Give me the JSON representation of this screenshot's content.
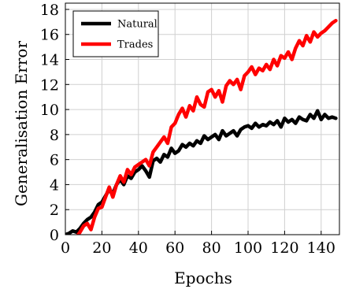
{
  "chart_data": {
    "type": "line",
    "title": "",
    "xlabel": "Epochs",
    "ylabel": "Generalisation Error",
    "xlim": [
      0,
      150
    ],
    "ylim": [
      0,
      18.5
    ],
    "xticks": [
      0,
      20,
      40,
      60,
      80,
      100,
      120,
      140
    ],
    "yticks": [
      0,
      2,
      4,
      6,
      8,
      10,
      12,
      14,
      16,
      18
    ],
    "grid": true,
    "legend": "top-left",
    "series": [
      {
        "name": "Natural",
        "color": "#000000",
        "x": [
          0,
          2,
          4,
          6,
          8,
          10,
          12,
          14,
          16,
          18,
          20,
          22,
          24,
          26,
          28,
          30,
          32,
          34,
          36,
          38,
          40,
          42,
          44,
          46,
          48,
          50,
          52,
          54,
          56,
          58,
          60,
          62,
          64,
          66,
          68,
          70,
          72,
          74,
          76,
          78,
          80,
          82,
          84,
          86,
          88,
          90,
          92,
          94,
          96,
          98,
          100,
          102,
          104,
          106,
          108,
          110,
          112,
          114,
          116,
          118,
          120,
          122,
          124,
          126,
          128,
          130,
          132,
          134,
          136,
          138,
          140,
          142,
          144,
          146,
          148
        ],
        "values": [
          0,
          0.1,
          0.3,
          0.2,
          0.5,
          0.9,
          1.2,
          1.4,
          1.8,
          2.4,
          2.6,
          3.1,
          3.6,
          3.3,
          4.0,
          4.4,
          4.0,
          4.7,
          4.5,
          5.0,
          5.2,
          5.5,
          5.1,
          4.6,
          5.9,
          6.1,
          5.8,
          6.4,
          6.2,
          6.9,
          6.5,
          6.7,
          7.2,
          7.0,
          7.3,
          7.1,
          7.5,
          7.3,
          7.9,
          7.6,
          7.8,
          8.0,
          7.6,
          8.3,
          7.9,
          8.1,
          8.3,
          7.9,
          8.4,
          8.6,
          8.7,
          8.5,
          8.9,
          8.6,
          8.8,
          8.7,
          9.0,
          8.8,
          9.1,
          8.6,
          9.3,
          9.0,
          9.2,
          8.9,
          9.4,
          9.2,
          9.1,
          9.6,
          9.3,
          9.9,
          9.2,
          9.6,
          9.3,
          9.4,
          9.3
        ]
      },
      {
        "name": "Trades",
        "color": "#ff0000",
        "x": [
          0,
          2,
          4,
          6,
          8,
          10,
          12,
          14,
          16,
          18,
          20,
          22,
          24,
          26,
          28,
          30,
          32,
          34,
          36,
          38,
          40,
          42,
          44,
          46,
          48,
          50,
          52,
          54,
          56,
          58,
          60,
          62,
          64,
          66,
          68,
          70,
          72,
          74,
          76,
          78,
          80,
          82,
          84,
          86,
          88,
          90,
          92,
          94,
          96,
          98,
          100,
          102,
          104,
          106,
          108,
          110,
          112,
          114,
          116,
          118,
          120,
          122,
          124,
          126,
          128,
          130,
          132,
          134,
          136,
          138,
          140,
          142,
          144,
          146,
          148
        ],
        "values": [
          -0.3,
          -0.4,
          -0.3,
          -0.2,
          0.2,
          0.7,
          0.9,
          0.4,
          1.4,
          2.1,
          2.2,
          3.0,
          3.8,
          3.0,
          4.0,
          4.7,
          4.2,
          5.2,
          4.8,
          5.4,
          5.6,
          5.8,
          6.0,
          5.5,
          6.6,
          7.0,
          7.4,
          7.8,
          7.3,
          8.6,
          8.9,
          9.6,
          10.1,
          9.4,
          10.3,
          9.9,
          11.0,
          10.4,
          10.2,
          11.4,
          11.6,
          11.0,
          11.5,
          10.6,
          11.9,
          12.3,
          12.0,
          12.4,
          11.6,
          12.7,
          13.0,
          13.4,
          12.8,
          13.3,
          13.1,
          13.6,
          13.2,
          14.0,
          13.5,
          14.3,
          14.1,
          14.6,
          14.0,
          14.9,
          15.5,
          15.1,
          15.9,
          15.4,
          16.2,
          15.8,
          16.1,
          16.3,
          16.6,
          16.9,
          17.1
        ]
      }
    ]
  }
}
